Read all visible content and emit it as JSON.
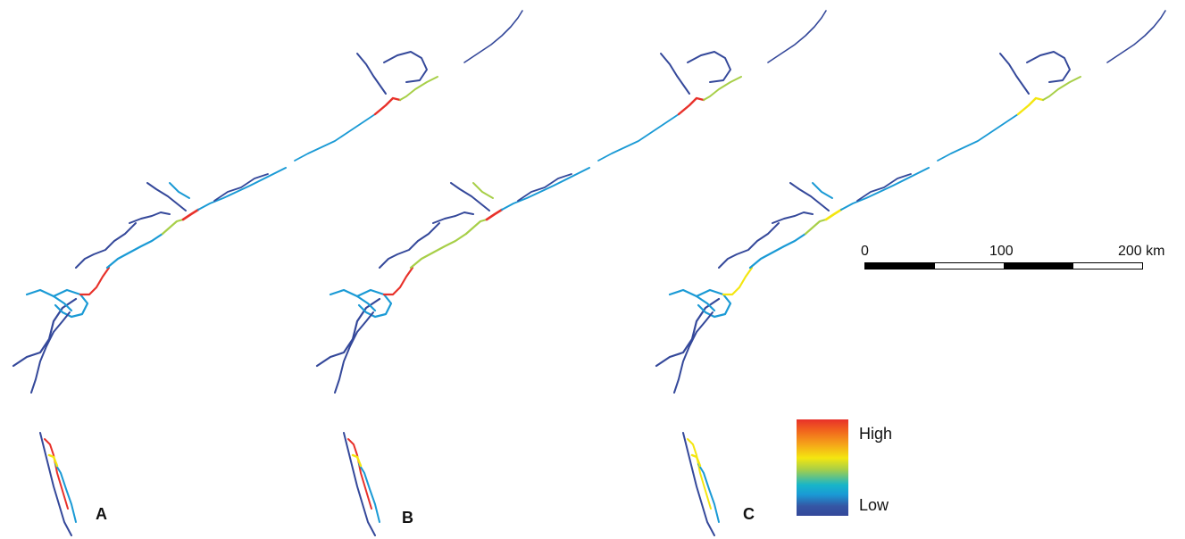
{
  "panels": [
    {
      "label": "A"
    },
    {
      "label": "B"
    },
    {
      "label": "C"
    }
  ],
  "scale_bar": {
    "ticks": [
      "0",
      "100",
      "200 km"
    ]
  },
  "legend": {
    "high": "High",
    "low": "Low",
    "colors": [
      "#e8312a",
      "#f1661d",
      "#f5a01a",
      "#f4e610",
      "#a7cf48",
      "#17b5c9",
      "#1a9ad5",
      "#3556a4",
      "#34489a"
    ]
  },
  "colors": {
    "low": "#34489a",
    "mid_low": "#1a9ad5",
    "mid": "#a7cf48",
    "mid_high": "#f4e610",
    "high": "#e8312a"
  }
}
